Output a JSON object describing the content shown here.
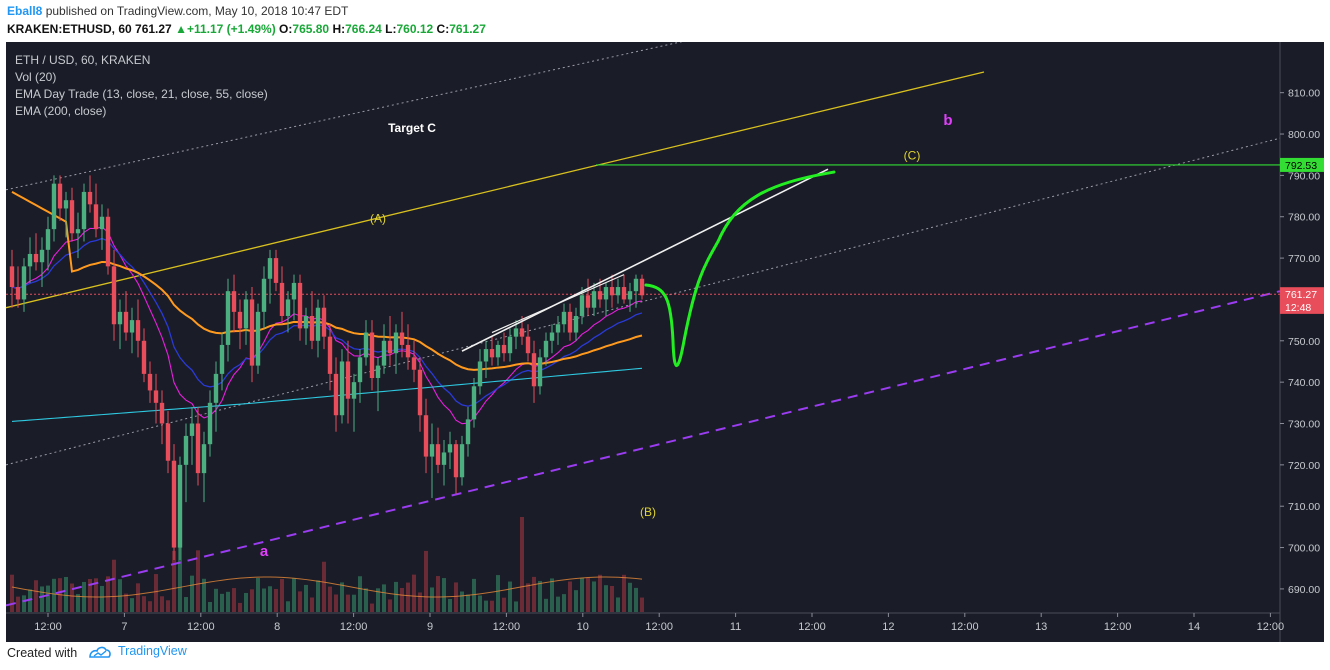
{
  "header": {
    "author": "Eball8",
    "published": "published on TradingView.com, May 10, 2018 10:47 EDT",
    "symbol": "KRAKEN:ETHUSD, 60",
    "last": "761.27",
    "change_arrow": "▲",
    "change": "+11.17 (+1.49%)",
    "o_label": "O:",
    "o_value": "765.80",
    "h_label": "H:",
    "h_value": "766.24",
    "l_label": "L:",
    "l_value": "760.12",
    "c_label": "C:",
    "c_value": "761.27"
  },
  "legend": {
    "title": "ETH / USD, 60, KRAKEN",
    "vol": "Vol (20)",
    "ema_day_trade": "EMA Day Trade (13, close, 21, close, 55, close)",
    "ema200": "EMA (200, close)"
  },
  "footer": {
    "created_with": "Created with",
    "brand": "TradingView"
  },
  "colors": {
    "background": "#1a1c27",
    "up_candle": "#4caf80",
    "down_candle": "#e84d5b",
    "ema13": "#e91ee0",
    "ema21": "#2a3ad8",
    "ema55": "#ff9a1f",
    "ema200": "#2ec8e0",
    "yellow_line": "#d8c020",
    "purple_dashed": "#9a3cf0",
    "target_line": "#33dd33",
    "projection": "#22ee22",
    "white_line": "#f0f0f0"
  },
  "chart_data": {
    "type": "candlestick",
    "y_axis": {
      "ticks": [
        "690.00",
        "700.00",
        "710.00",
        "720.00",
        "730.00",
        "740.00",
        "750.00",
        "760.00",
        "770.00",
        "780.00",
        "790.00",
        "800.00",
        "810.00"
      ],
      "range": [
        682,
        815
      ]
    },
    "x_axis": {
      "ticks": [
        "12:00",
        "7",
        "12:00",
        "8",
        "12:00",
        "9",
        "12:00",
        "10",
        "12:00",
        "11",
        "12:00",
        "12",
        "12:00",
        "13",
        "12:00",
        "14",
        "12:00"
      ]
    },
    "price_labels": [
      {
        "text": "792.53",
        "value": 792.53,
        "style": "target"
      },
      {
        "text": "761.27",
        "value": 761.27,
        "style": "last"
      },
      {
        "text": "12:48",
        "value": 758.2,
        "style": "countdown"
      }
    ],
    "candles": [
      [
        0,
        768,
        772,
        758,
        763
      ],
      [
        1,
        763,
        768,
        758,
        760
      ],
      [
        2,
        760,
        770,
        757,
        768
      ],
      [
        3,
        768,
        775,
        764,
        771
      ],
      [
        4,
        771,
        776,
        767,
        769
      ],
      [
        5,
        769,
        775,
        763,
        772
      ],
      [
        6,
        772,
        780,
        767,
        777
      ],
      [
        7,
        777,
        790,
        774,
        788
      ],
      [
        8,
        788,
        790,
        779,
        782
      ],
      [
        9,
        782,
        786,
        775,
        784
      ],
      [
        10,
        784,
        787,
        774,
        776
      ],
      [
        11,
        776,
        781,
        770,
        777
      ],
      [
        12,
        777,
        788,
        774,
        786
      ],
      [
        13,
        786,
        790,
        781,
        783
      ],
      [
        14,
        783,
        788,
        775,
        777
      ],
      [
        15,
        777,
        783,
        772,
        780
      ],
      [
        16,
        780,
        782,
        766,
        768
      ],
      [
        17,
        768,
        772,
        750,
        754
      ],
      [
        18,
        754,
        760,
        748,
        757
      ],
      [
        19,
        757,
        762,
        750,
        752
      ],
      [
        20,
        752,
        758,
        747,
        755
      ],
      [
        21,
        755,
        760,
        746,
        750
      ],
      [
        22,
        750,
        753,
        740,
        742
      ],
      [
        23,
        742,
        745,
        735,
        738
      ],
      [
        24,
        738,
        742,
        730,
        735
      ],
      [
        25,
        735,
        738,
        725,
        730
      ],
      [
        26,
        730,
        733,
        718,
        721
      ],
      [
        27,
        721,
        725,
        697,
        700
      ],
      [
        28,
        700,
        722,
        697,
        720
      ],
      [
        29,
        720,
        730,
        711,
        727
      ],
      [
        30,
        727,
        734,
        720,
        730
      ],
      [
        31,
        730,
        734,
        715,
        718
      ],
      [
        32,
        718,
        728,
        711,
        725
      ],
      [
        33,
        725,
        738,
        722,
        735
      ],
      [
        34,
        735,
        745,
        728,
        742
      ],
      [
        35,
        742,
        752,
        738,
        749
      ],
      [
        36,
        749,
        765,
        745,
        762
      ],
      [
        37,
        762,
        766,
        752,
        757
      ],
      [
        38,
        757,
        760,
        748,
        753
      ],
      [
        39,
        753,
        762,
        749,
        760
      ],
      [
        40,
        760,
        763,
        740,
        744
      ],
      [
        41,
        744,
        759,
        742,
        757
      ],
      [
        42,
        757,
        768,
        753,
        765
      ],
      [
        43,
        765,
        772,
        759,
        770
      ],
      [
        44,
        770,
        772,
        762,
        764
      ],
      [
        45,
        764,
        768,
        754,
        756
      ],
      [
        46,
        756,
        762,
        752,
        760
      ],
      [
        47,
        760,
        766,
        755,
        764
      ],
      [
        48,
        764,
        766,
        750,
        753
      ],
      [
        49,
        753,
        758,
        749,
        756
      ],
      [
        50,
        756,
        762,
        748,
        750
      ],
      [
        51,
        750,
        760,
        746,
        758
      ],
      [
        52,
        758,
        761,
        748,
        751
      ],
      [
        53,
        751,
        754,
        738,
        742
      ],
      [
        54,
        742,
        746,
        728,
        732
      ],
      [
        55,
        732,
        748,
        730,
        745
      ],
      [
        56,
        745,
        750,
        730,
        736
      ],
      [
        57,
        736,
        742,
        728,
        740
      ],
      [
        58,
        740,
        748,
        735,
        746
      ],
      [
        59,
        746,
        755,
        744,
        752
      ],
      [
        60,
        752,
        755,
        738,
        741
      ],
      [
        61,
        741,
        746,
        733,
        744
      ],
      [
        62,
        744,
        754,
        742,
        750
      ],
      [
        63,
        750,
        756,
        744,
        747
      ],
      [
        64,
        747,
        754,
        742,
        752
      ],
      [
        65,
        752,
        757,
        746,
        749
      ],
      [
        66,
        749,
        754,
        743,
        746
      ],
      [
        67,
        746,
        750,
        740,
        743
      ],
      [
        68,
        743,
        746,
        728,
        732
      ],
      [
        69,
        732,
        736,
        718,
        722
      ],
      [
        70,
        722,
        730,
        712,
        725
      ],
      [
        71,
        725,
        729,
        718,
        720
      ],
      [
        72,
        720,
        726,
        715,
        723
      ],
      [
        73,
        723,
        728,
        719,
        725
      ],
      [
        74,
        725,
        726,
        713,
        717
      ],
      [
        75,
        717,
        727,
        715,
        725
      ],
      [
        76,
        725,
        734,
        722,
        731
      ],
      [
        77,
        731,
        741,
        729,
        739
      ],
      [
        78,
        739,
        748,
        737,
        745
      ],
      [
        79,
        745,
        750,
        741,
        748
      ],
      [
        80,
        748,
        751,
        744,
        746
      ],
      [
        81,
        746,
        750,
        744,
        749
      ],
      [
        82,
        749,
        752,
        745,
        747
      ],
      [
        83,
        747,
        753,
        745,
        751
      ],
      [
        84,
        751,
        755,
        748,
        753
      ],
      [
        85,
        753,
        756,
        749,
        751
      ],
      [
        86,
        751,
        754,
        745,
        747
      ],
      [
        87,
        747,
        750,
        735,
        739
      ],
      [
        88,
        739,
        748,
        737,
        746
      ],
      [
        89,
        746,
        752,
        744,
        750
      ],
      [
        90,
        750,
        754,
        747,
        752
      ],
      [
        91,
        752,
        756,
        749,
        754
      ],
      [
        92,
        754,
        759,
        752,
        757
      ],
      [
        93,
        757,
        759,
        750,
        752
      ],
      [
        94,
        752,
        758,
        750,
        756
      ],
      [
        95,
        756,
        763,
        754,
        761
      ],
      [
        96,
        761,
        765,
        756,
        758
      ],
      [
        97,
        758,
        764,
        756,
        762
      ],
      [
        98,
        762,
        765,
        758,
        760
      ],
      [
        99,
        760,
        764,
        756,
        763
      ],
      [
        100,
        763,
        766,
        758,
        761
      ],
      [
        101,
        761,
        765,
        759,
        763
      ],
      [
        102,
        763,
        766,
        759,
        760
      ],
      [
        103,
        760,
        764,
        757,
        762
      ],
      [
        104,
        762,
        766,
        758,
        765
      ],
      [
        105,
        765,
        766,
        760,
        761
      ]
    ],
    "annotations": [
      {
        "text": "Target C",
        "color": "#ffffff",
        "x": 105,
        "y": 800.5
      },
      {
        "text": "b",
        "color": "#e040fb",
        "x": 156,
        "y": 802.2
      },
      {
        "text": "(C)",
        "color": "#e0d430",
        "x": 150,
        "y": 793.8
      },
      {
        "text": "(A)",
        "color": "#e0d430",
        "x": 61,
        "y": 778.6
      },
      {
        "text": "(B)",
        "color": "#e0d430",
        "x": 106,
        "y": 707.6
      },
      {
        "text": "a",
        "color": "#e040fb",
        "x": 42,
        "y": 698.0
      }
    ]
  }
}
